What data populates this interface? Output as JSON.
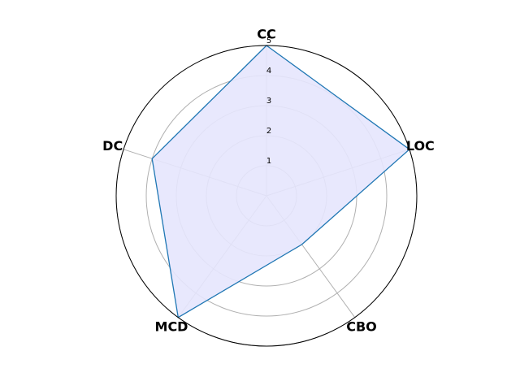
{
  "chart_data": {
    "type": "radar",
    "axes": [
      "CC",
      "LOC",
      "CBO",
      "MCD",
      "DC"
    ],
    "series": [
      {
        "values": [
          5,
          5,
          2,
          5,
          4
        ]
      }
    ],
    "rlim": [
      0,
      5
    ],
    "rticks": [
      "1",
      "2",
      "3",
      "4",
      "5"
    ],
    "grid": true,
    "colors": {
      "line": "#1f77b4",
      "fill": "#e6e6fd",
      "grid": "#b0b0b0",
      "frame": "#000000"
    }
  }
}
